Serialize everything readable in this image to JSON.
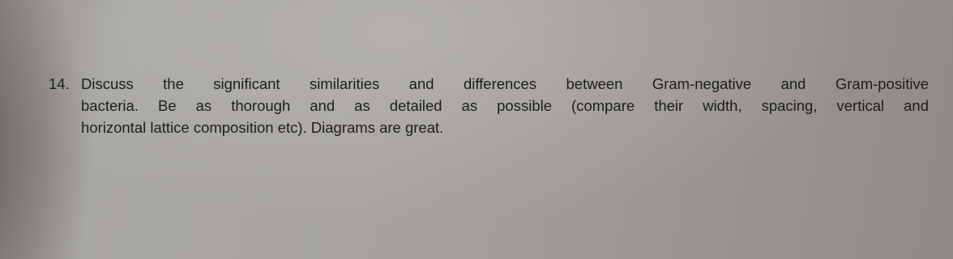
{
  "question": {
    "number": "14.",
    "lines": [
      "Discuss the significant similarities and differences between Gram-negative and Gram-positive",
      "bacteria. Be as thorough and as detailed as possible (compare their width, spacing, vertical and",
      "horizontal lattice composition etc). Diagrams are great."
    ]
  }
}
